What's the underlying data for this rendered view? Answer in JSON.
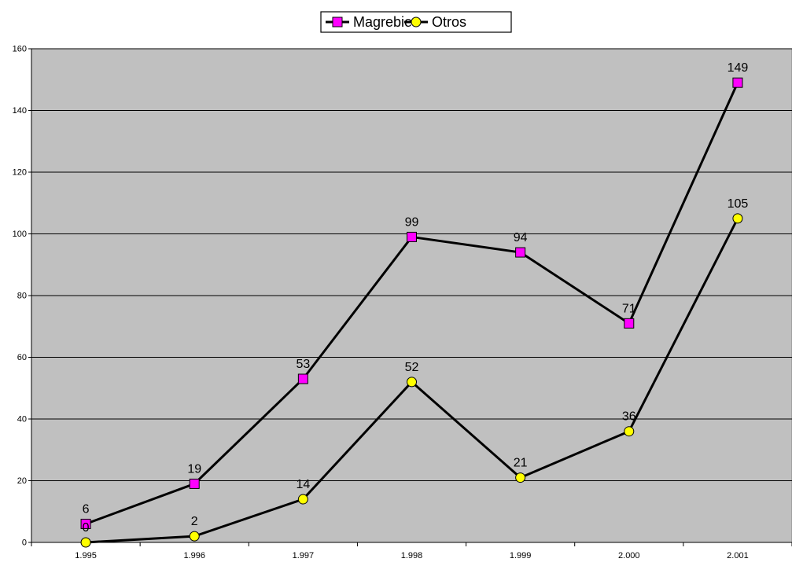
{
  "chart_data": {
    "type": "line",
    "title": "",
    "xlabel": "",
    "ylabel": "",
    "categories": [
      "1.995",
      "1.996",
      "1.997",
      "1.998",
      "1.999",
      "2.000",
      "2.001"
    ],
    "ylim": [
      0,
      160
    ],
    "yticks": [
      0,
      20,
      40,
      60,
      80,
      100,
      120,
      140,
      160
    ],
    "grid": true,
    "legend_position": "top-center",
    "plot_background": "#c0c0c0",
    "series": [
      {
        "name": "Magrebies",
        "marker": "square",
        "marker_color": "#ff00ff",
        "line_color": "#000000",
        "values": [
          6,
          19,
          53,
          99,
          94,
          71,
          149
        ],
        "labels": [
          "6",
          "19",
          "53",
          "99",
          "94",
          "71",
          "149"
        ]
      },
      {
        "name": "Otros",
        "marker": "circle",
        "marker_color": "#ffff00",
        "line_color": "#000000",
        "values": [
          0,
          2,
          14,
          52,
          21,
          36,
          105
        ],
        "labels": [
          "0",
          "2",
          "14",
          "52",
          "21",
          "36",
          "105"
        ]
      }
    ]
  }
}
